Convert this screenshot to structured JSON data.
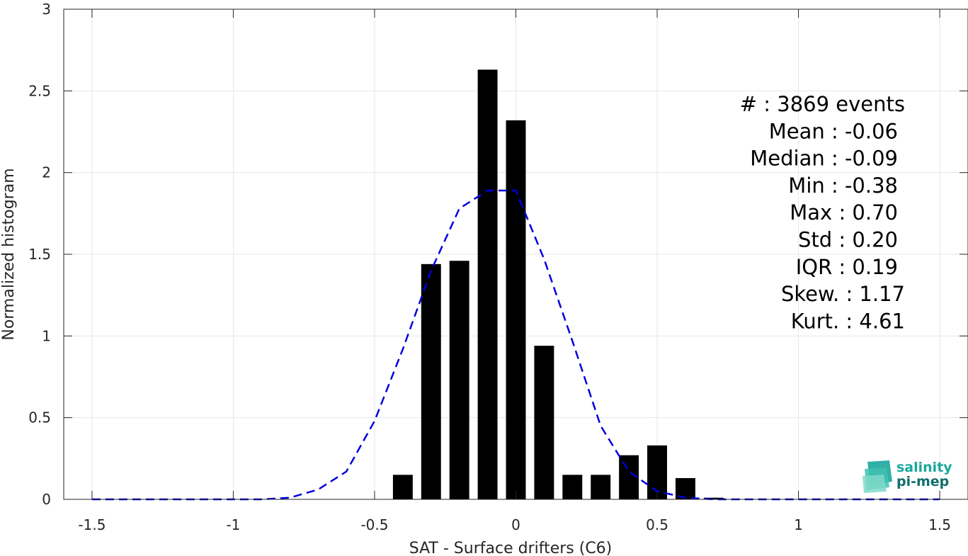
{
  "chart_data": {
    "type": "bar",
    "xlabel": "SAT - Surface drifters (C6)",
    "ylabel": "Normalized histogram",
    "xlim": [
      -1.6,
      1.6
    ],
    "ylim": [
      0,
      3
    ],
    "xticks": [
      -1.5,
      -1,
      -0.5,
      0,
      0.5,
      1,
      1.5
    ],
    "xtick_labels": [
      "-1.5",
      "-1",
      "-0.5",
      "0",
      "0.5",
      "1",
      "1.5"
    ],
    "yticks": [
      0,
      0.5,
      1,
      1.5,
      2,
      2.5,
      3
    ],
    "ytick_labels": [
      "0",
      "0.5",
      "1",
      "1.5",
      "2",
      "2.5",
      "3"
    ],
    "grid": true,
    "bin_width": 0.1,
    "bar_width": 0.07,
    "bars": {
      "x": [
        -0.4,
        -0.3,
        -0.2,
        -0.1,
        0.0,
        0.1,
        0.2,
        0.3,
        0.4,
        0.5,
        0.6,
        0.7
      ],
      "values": [
        0.15,
        1.44,
        1.46,
        2.63,
        2.32,
        0.94,
        0.15,
        0.15,
        0.27,
        0.33,
        0.13,
        0.01
      ],
      "color": "#000000"
    },
    "fit_curve": {
      "style": "dashed",
      "color": "#0000dd",
      "x": [
        -1.5,
        -1.4,
        -1.3,
        -1.2,
        -1.1,
        -1.0,
        -0.9,
        -0.8,
        -0.7,
        -0.6,
        -0.5,
        -0.4,
        -0.3,
        -0.2,
        -0.1,
        0.0,
        0.1,
        0.2,
        0.3,
        0.4,
        0.5,
        0.6,
        0.7,
        0.8,
        0.9,
        1.0,
        1.1,
        1.2,
        1.3,
        1.4,
        1.5
      ],
      "y": [
        0,
        0,
        0,
        0,
        0,
        0,
        0,
        0.01,
        0.06,
        0.17,
        0.48,
        0.92,
        1.4,
        1.78,
        1.89,
        1.89,
        1.47,
        0.97,
        0.45,
        0.17,
        0.05,
        0.01,
        0,
        0,
        0,
        0,
        0,
        0,
        0,
        0,
        0
      ]
    },
    "stats": [
      "#  : 3869 events",
      "Mean : -0.06",
      "Median : -0.09",
      "Min : -0.38",
      "Max : 0.70",
      "Std : 0.20",
      "IQR : 0.19",
      "Skew. : 1.17",
      "Kurt. : 4.61"
    ]
  },
  "logo": {
    "line1": "salinity",
    "line2": "pi-mep",
    "color1": "#1aa79c",
    "color2": "#0f6f6a"
  }
}
